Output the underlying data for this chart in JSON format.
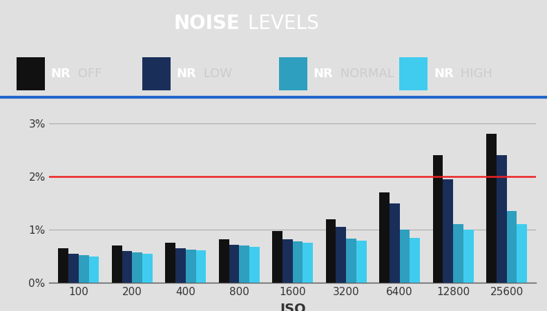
{
  "title_bold": "NOISE",
  "title_regular": " LEVELS",
  "title_bg_color": "#007a8c",
  "legend_bg_color": "#666666",
  "chart_bg_color": "#e0e0e0",
  "iso_labels": [
    "100",
    "200",
    "400",
    "800",
    "1600",
    "3200",
    "6400",
    "12800",
    "25600"
  ],
  "xlabel": "ISO",
  "series": {
    "NR OFF": [
      0.0065,
      0.007,
      0.0075,
      0.0082,
      0.0098,
      0.012,
      0.017,
      0.024,
      0.028
    ],
    "NR LOW": [
      0.0055,
      0.006,
      0.0065,
      0.0072,
      0.0082,
      0.0105,
      0.015,
      0.0195,
      0.024
    ],
    "NR NORMAL": [
      0.0052,
      0.0057,
      0.0063,
      0.007,
      0.0078,
      0.0083,
      0.01,
      0.011,
      0.0135
    ],
    "NR HIGH": [
      0.005,
      0.0055,
      0.0062,
      0.0068,
      0.0075,
      0.008,
      0.0085,
      0.01,
      0.011
    ]
  },
  "bar_colors": {
    "NR OFF": "#111111",
    "NR LOW": "#1a2e5a",
    "NR NORMAL": "#2e9fbe",
    "NR HIGH": "#40ccee"
  },
  "ytick_labels": [
    "0%",
    "1%",
    "2%",
    "3%"
  ],
  "ytick_values": [
    0.0,
    0.01,
    0.02,
    0.03
  ],
  "ylim": [
    0,
    0.033
  ],
  "red_line_y": 0.02,
  "red_line_color": "#ee2222",
  "legend_entries": [
    {
      "label": "NR OFF",
      "color": "#111111"
    },
    {
      "label": "NR LOW",
      "color": "#1a2e5a"
    },
    {
      "label": "NR NORMAL",
      "color": "#2e9fbe"
    },
    {
      "label": "NR HIGH",
      "color": "#40ccee"
    }
  ]
}
